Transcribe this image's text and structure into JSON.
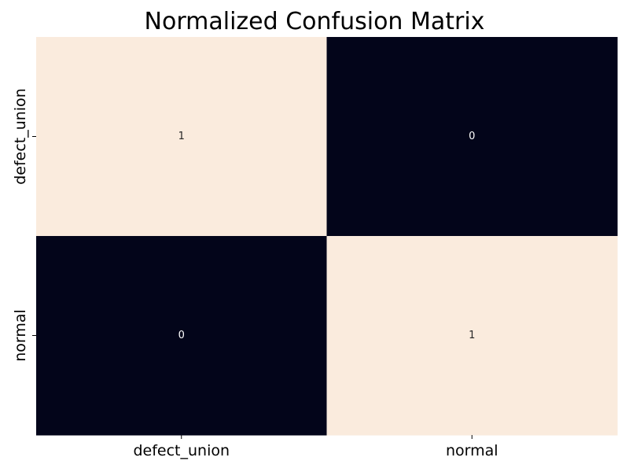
{
  "chart_data": {
    "type": "heatmap",
    "title": "Normalized Confusion Matrix",
    "xlabel": "",
    "ylabel": "",
    "x_categories": [
      "defect_union",
      "normal"
    ],
    "y_categories": [
      "defect_union",
      "normal"
    ],
    "values": [
      [
        1,
        0
      ],
      [
        0,
        1
      ]
    ],
    "annotations": [
      [
        "1",
        "0"
      ],
      [
        "0",
        "1"
      ]
    ],
    "vmin": 0,
    "vmax": 1,
    "colormap": "rocket",
    "color_low": "#03051a",
    "color_high": "#faebdd",
    "annotation_color_on_light": "#262626",
    "annotation_color_on_dark": "#ffffff",
    "colorbar": false,
    "grid": false
  }
}
